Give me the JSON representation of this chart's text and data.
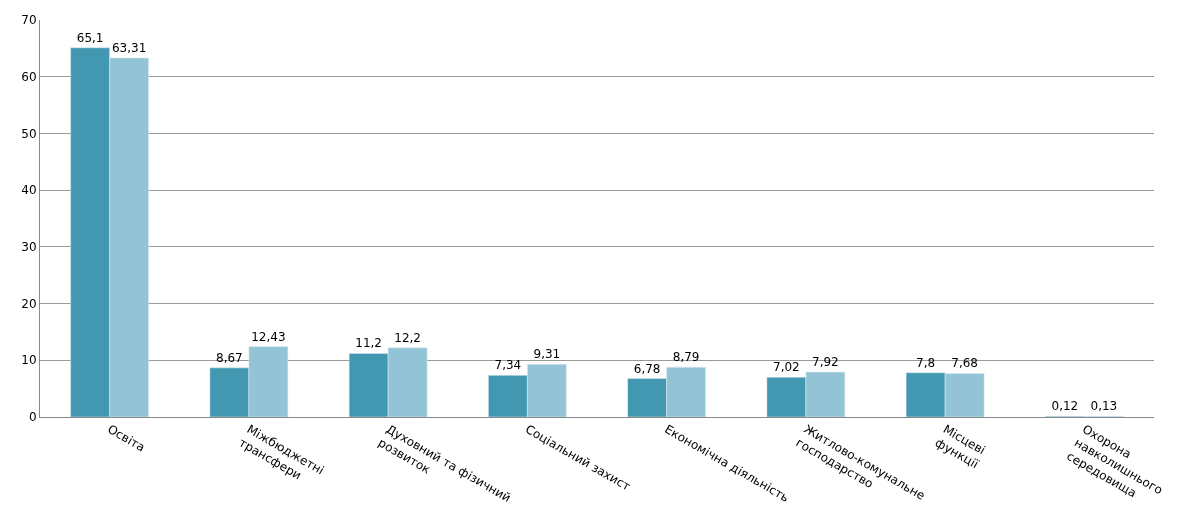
{
  "chart_data": {
    "type": "bar",
    "categories": [
      "Освіта",
      "Міжбюджетні\nтрансфери",
      "Духовний та фізичний\nрозвиток",
      "Соціальний захист",
      "Економічна діяльність",
      "Житлово-комунальне\nгосподарство",
      "Місцеві\nфункції",
      "Охорона\nнавколишнього\nсередовища"
    ],
    "series": [
      {
        "color": "#4298b0",
        "values": [
          65.1,
          8.67,
          11.2,
          7.34,
          6.78,
          7.02,
          7.8,
          0.12
        ],
        "value_labels": [
          "65,1",
          "8,67",
          "11,2",
          "7,34",
          "6,78",
          "7,02",
          "7,8",
          "0,12"
        ]
      },
      {
        "color": "#93c4d6",
        "values": [
          63.31,
          12.43,
          12.2,
          9.31,
          8.79,
          7.92,
          7.68,
          0.13
        ],
        "value_labels": [
          "63,31",
          "12,43",
          "12,2",
          "9,31",
          "8,79",
          "7,92",
          "7,68",
          "0,13"
        ]
      }
    ],
    "ylim": [
      0,
      70
    ],
    "yticks": [
      0,
      10,
      20,
      30,
      40,
      50,
      60,
      70
    ],
    "grid": "y",
    "legend": false
  }
}
